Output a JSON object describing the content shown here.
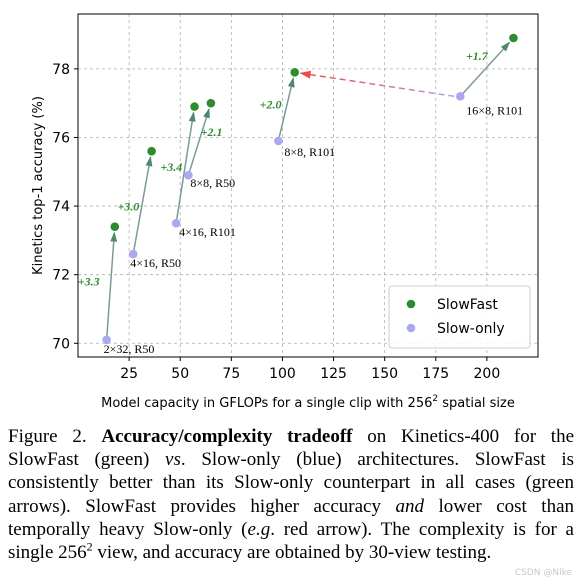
{
  "chart_data": {
    "type": "scatter",
    "title": "",
    "xlabel": "Model capacity in GFLOPs for a single clip with 256",
    "xlabel_sup": "2",
    "xlabel_tail": " spatial size",
    "ylabel": "Kinetics top-1 accuracy (%)",
    "xlim": [
      0,
      225
    ],
    "ylim": [
      69.6,
      79.6
    ],
    "xticks": [
      25,
      50,
      75,
      100,
      125,
      150,
      175,
      200
    ],
    "yticks": [
      70,
      72,
      74,
      76,
      78
    ],
    "grid": true,
    "legend_position": "bottom-right",
    "series": [
      {
        "name": "SlowFast",
        "color": "#2e8b2e",
        "points": [
          {
            "x": 18,
            "y": 73.4
          },
          {
            "x": 36,
            "y": 75.6
          },
          {
            "x": 57,
            "y": 76.9
          },
          {
            "x": 65,
            "y": 77.0
          },
          {
            "x": 106,
            "y": 77.9
          },
          {
            "x": 213,
            "y": 78.9
          }
        ]
      },
      {
        "name": "Slow-only",
        "color": "#a9a9f0",
        "points": [
          {
            "x": 14,
            "y": 70.1,
            "label": "2×32, R50"
          },
          {
            "x": 27,
            "y": 72.6,
            "label": "4×16, R50"
          },
          {
            "x": 48,
            "y": 73.5,
            "label": "4×16, R101"
          },
          {
            "x": 54,
            "y": 74.9,
            "label": "8×8, R50"
          },
          {
            "x": 98,
            "y": 75.9,
            "label": "8×8, R101"
          },
          {
            "x": 187,
            "y": 77.2,
            "label": "16×8, R101"
          }
        ]
      }
    ],
    "arrows": [
      {
        "from": [
          14,
          70.1
        ],
        "to": [
          18,
          73.4
        ],
        "label": "+3.3",
        "type": "gain"
      },
      {
        "from": [
          27,
          72.6
        ],
        "to": [
          36,
          75.6
        ],
        "label": "+3.0",
        "type": "gain"
      },
      {
        "from": [
          48,
          73.5
        ],
        "to": [
          57,
          76.9
        ],
        "label": "+3.4",
        "type": "gain"
      },
      {
        "from": [
          54,
          74.9
        ],
        "to": [
          65,
          77.0
        ],
        "label": "+2.1",
        "type": "gain"
      },
      {
        "from": [
          98,
          75.9
        ],
        "to": [
          106,
          77.9
        ],
        "label": "+2.0",
        "type": "gain"
      },
      {
        "from": [
          187,
          77.2
        ],
        "to": [
          213,
          78.9
        ],
        "label": "+1.7",
        "type": "gain"
      },
      {
        "from": [
          187,
          77.2
        ],
        "to": [
          106,
          77.9
        ],
        "label": "",
        "type": "red"
      }
    ],
    "colors": {
      "gain_arrow": "#7a9a9a",
      "gain_label": "#2e8b2e",
      "red_arrow_start": "#b0a0e8",
      "red_arrow_end": "#f04848"
    }
  },
  "caption": {
    "prefix": "Figure 2. ",
    "bold": "Accuracy/complexity tradeoff",
    "t1": " on Kinetics-400 for the SlowFast (green) ",
    "vs": "vs",
    "t2": ". Slow-only (blue) architectures. SlowFast is consistently better than its Slow-only counterpart in all cases (green arrows). SlowFast provides higher accuracy ",
    "and": "and",
    "t3": " lower cost than temporally heavy Slow-only (",
    "eg": "e.g",
    "t4": ". red arrow). The complexity is for a single 256",
    "sup": "2",
    "t5": " view, and accuracy are obtained by 30-view testing."
  },
  "watermark": "CSDN @Nike"
}
